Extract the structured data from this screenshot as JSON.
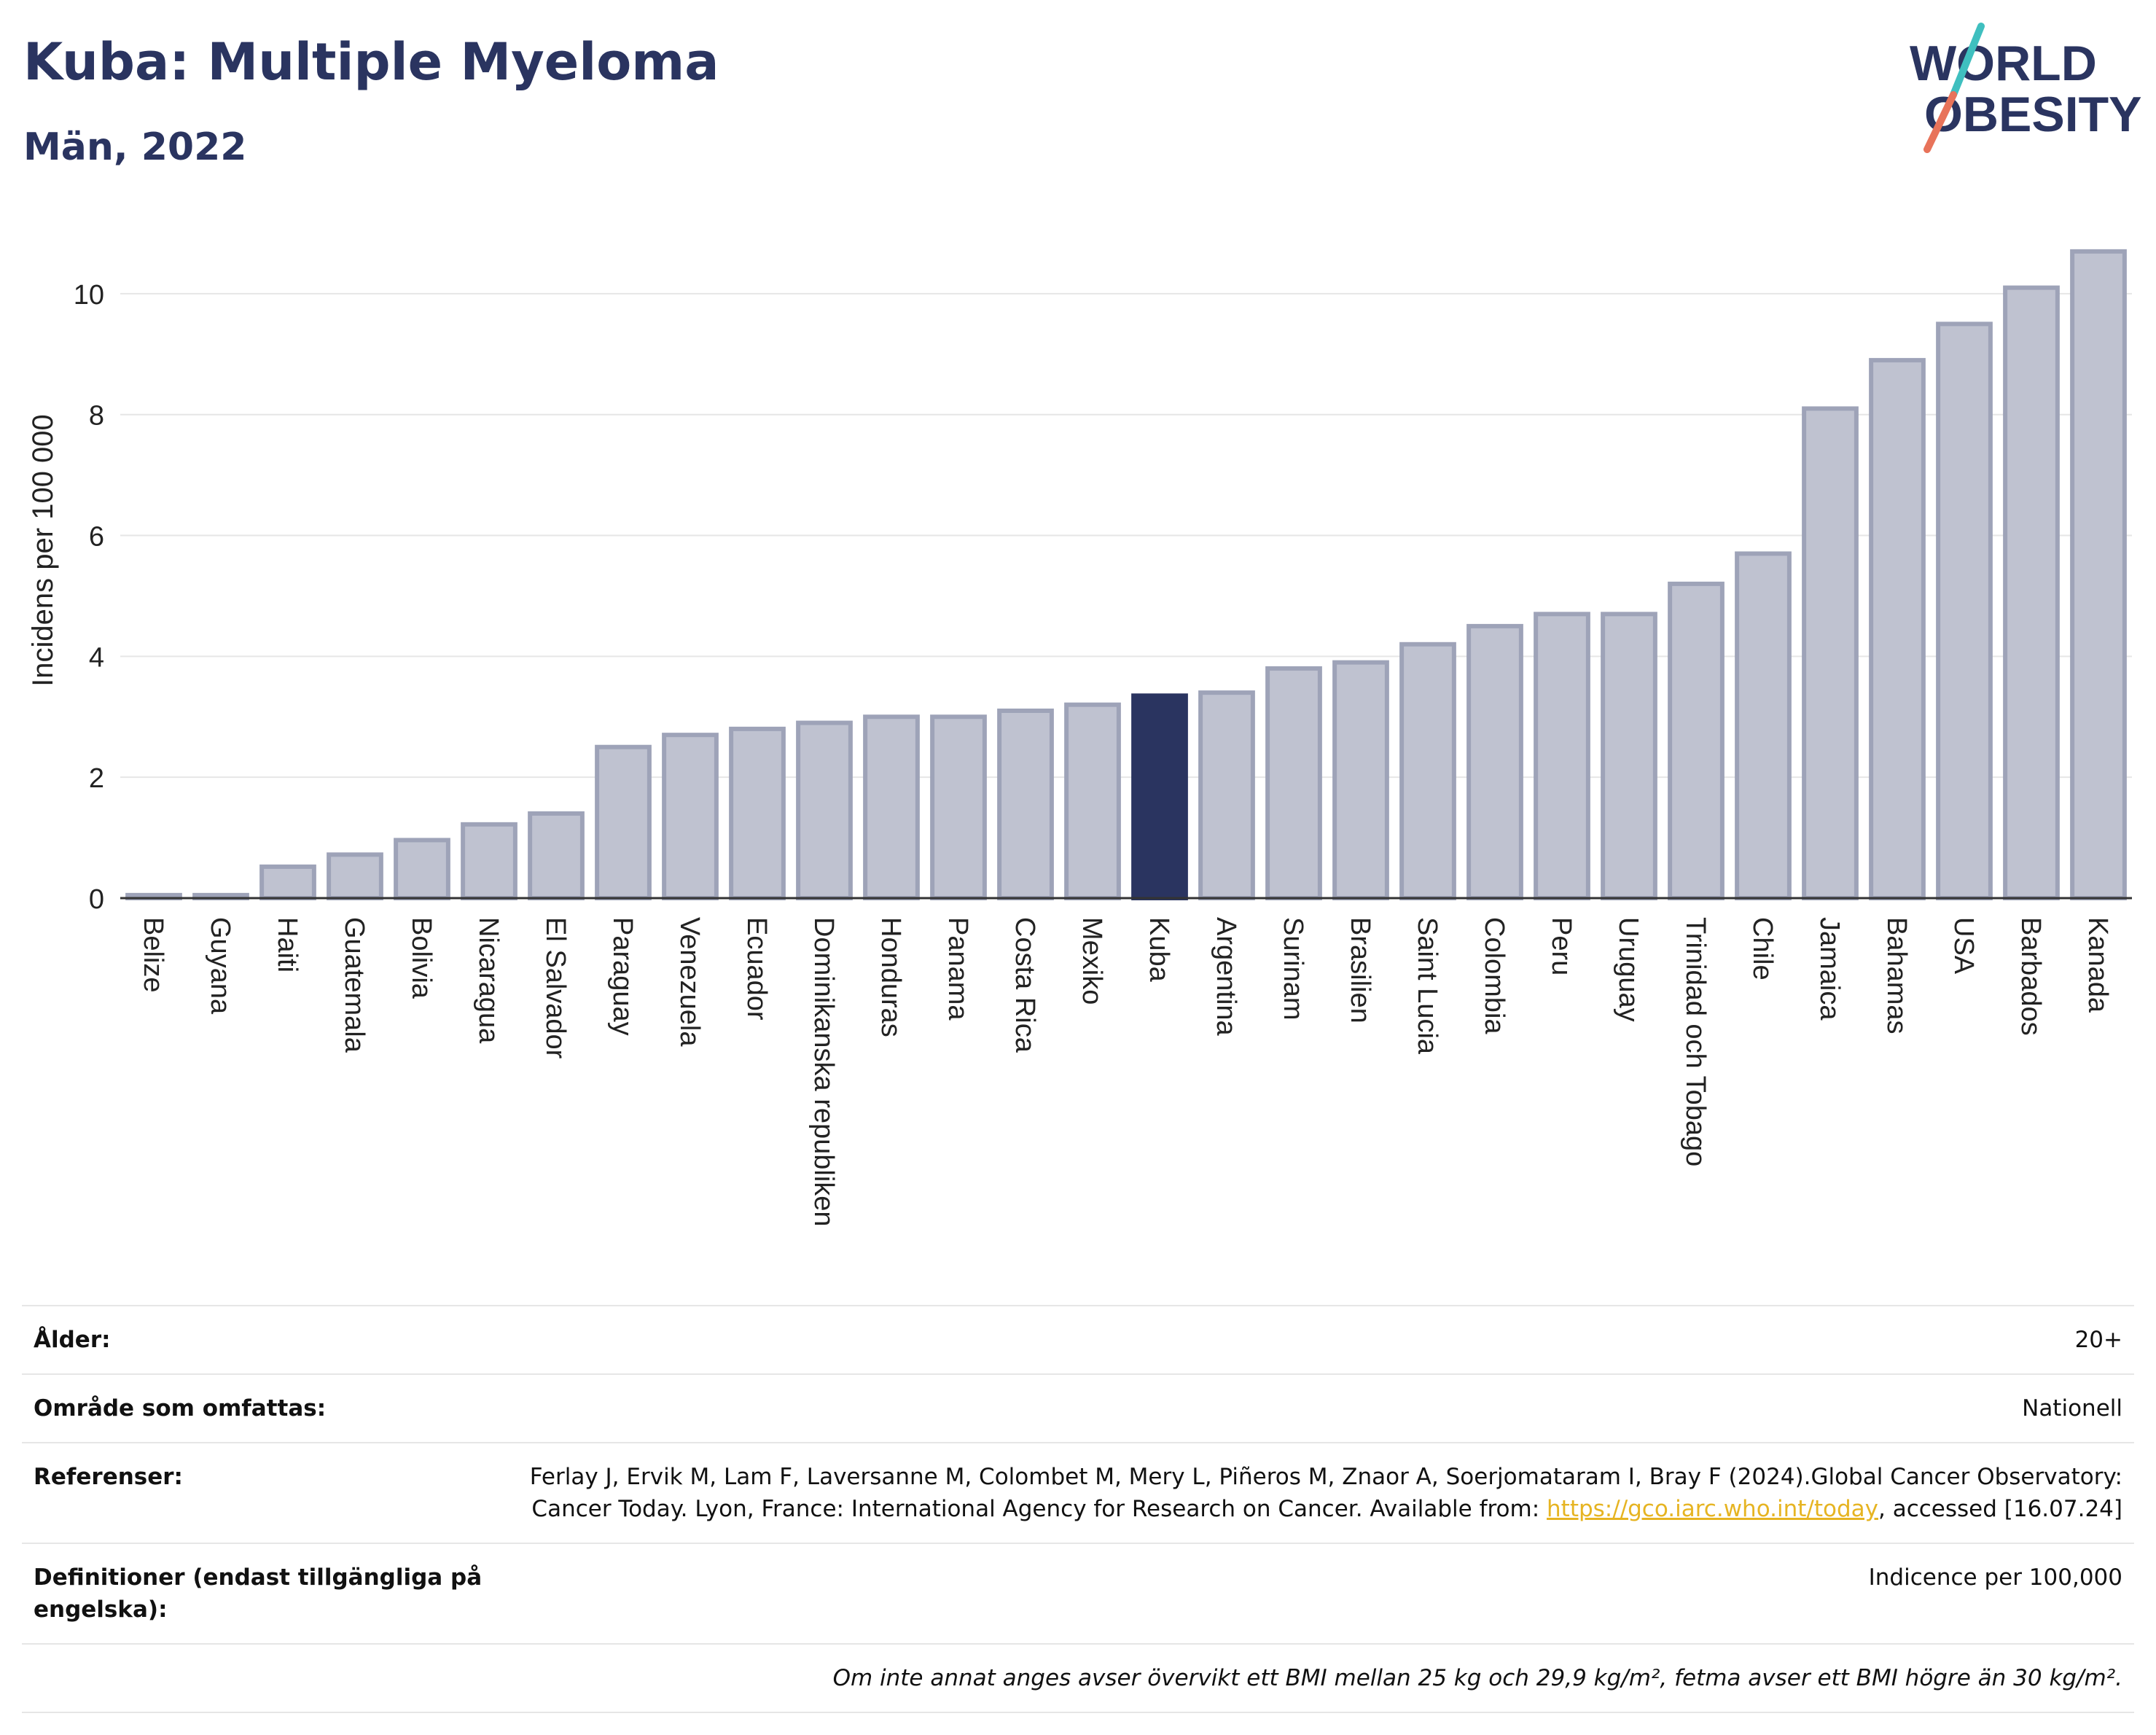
{
  "header": {
    "title": "Kuba: Multiple Myeloma",
    "subtitle": "Män, 2022"
  },
  "logo": {
    "line1": "WORLD",
    "line2": "OBESITY",
    "accent_colors": [
      "#3fbfbf",
      "#e8735a"
    ]
  },
  "chart_data": {
    "type": "bar",
    "title": "",
    "xlabel": "",
    "ylabel": "Incidens per 100 000",
    "ylim": [
      0,
      11
    ],
    "yticks": [
      0,
      2,
      4,
      6,
      8,
      10
    ],
    "grid": true,
    "highlight": "Kuba",
    "colors": {
      "bar": "#bfc2d0",
      "bar_edge": "#9ea3b8",
      "highlight": "#2a3460",
      "grid": "#e6e6e6",
      "axis": "#333333"
    },
    "categories": [
      "Belize",
      "Guyana",
      "Haiti",
      "Guatemala",
      "Bolivia",
      "Nicaragua",
      "El Salvador",
      "Paraguay",
      "Venezuela",
      "Ecuador",
      "Dominikanska republiken",
      "Honduras",
      "Panama",
      "Costa Rica",
      "Mexiko",
      "Kuba",
      "Argentina",
      "Surinam",
      "Brasilien",
      "Saint Lucia",
      "Colombia",
      "Peru",
      "Uruguay",
      "Trinidad och Tobago",
      "Chile",
      "Jamaica",
      "Bahamas",
      "USA",
      "Barbados",
      "Kanada"
    ],
    "values": [
      0.05,
      0.05,
      0.52,
      0.72,
      0.96,
      1.22,
      1.4,
      2.5,
      2.7,
      2.8,
      2.9,
      3.0,
      3.0,
      3.1,
      3.2,
      3.35,
      3.4,
      3.8,
      3.9,
      4.2,
      4.5,
      4.7,
      4.7,
      5.2,
      5.7,
      8.1,
      8.9,
      9.5,
      10.1,
      10.7
    ]
  },
  "info": {
    "rows": [
      {
        "key": "Ålder:",
        "value": "20+"
      },
      {
        "key": "Område som omfattas:",
        "value": "Nationell"
      },
      {
        "key": "Referenser:",
        "value_before": "Ferlay J, Ervik M, Lam F, Laversanne M, Colombet M, Mery L, Piñeros M, Znaor A, Soerjomataram I, Bray F (2024).Global Cancer Observatory: Cancer Today. Lyon, France: International Agency for Research on Cancer. Available from: ",
        "link": "https://gco.iarc.who.int/today",
        "value_after": ", accessed [16.07.24]"
      },
      {
        "key": "Definitioner (endast tillgängliga på engelska):",
        "value": "Indicence per 100,000"
      }
    ],
    "note": "Om inte annat anges avser övervikt ett BMI mellan 25 kg och 29,9 kg/m², fetma avser ett BMI högre än 30 kg/m²."
  }
}
